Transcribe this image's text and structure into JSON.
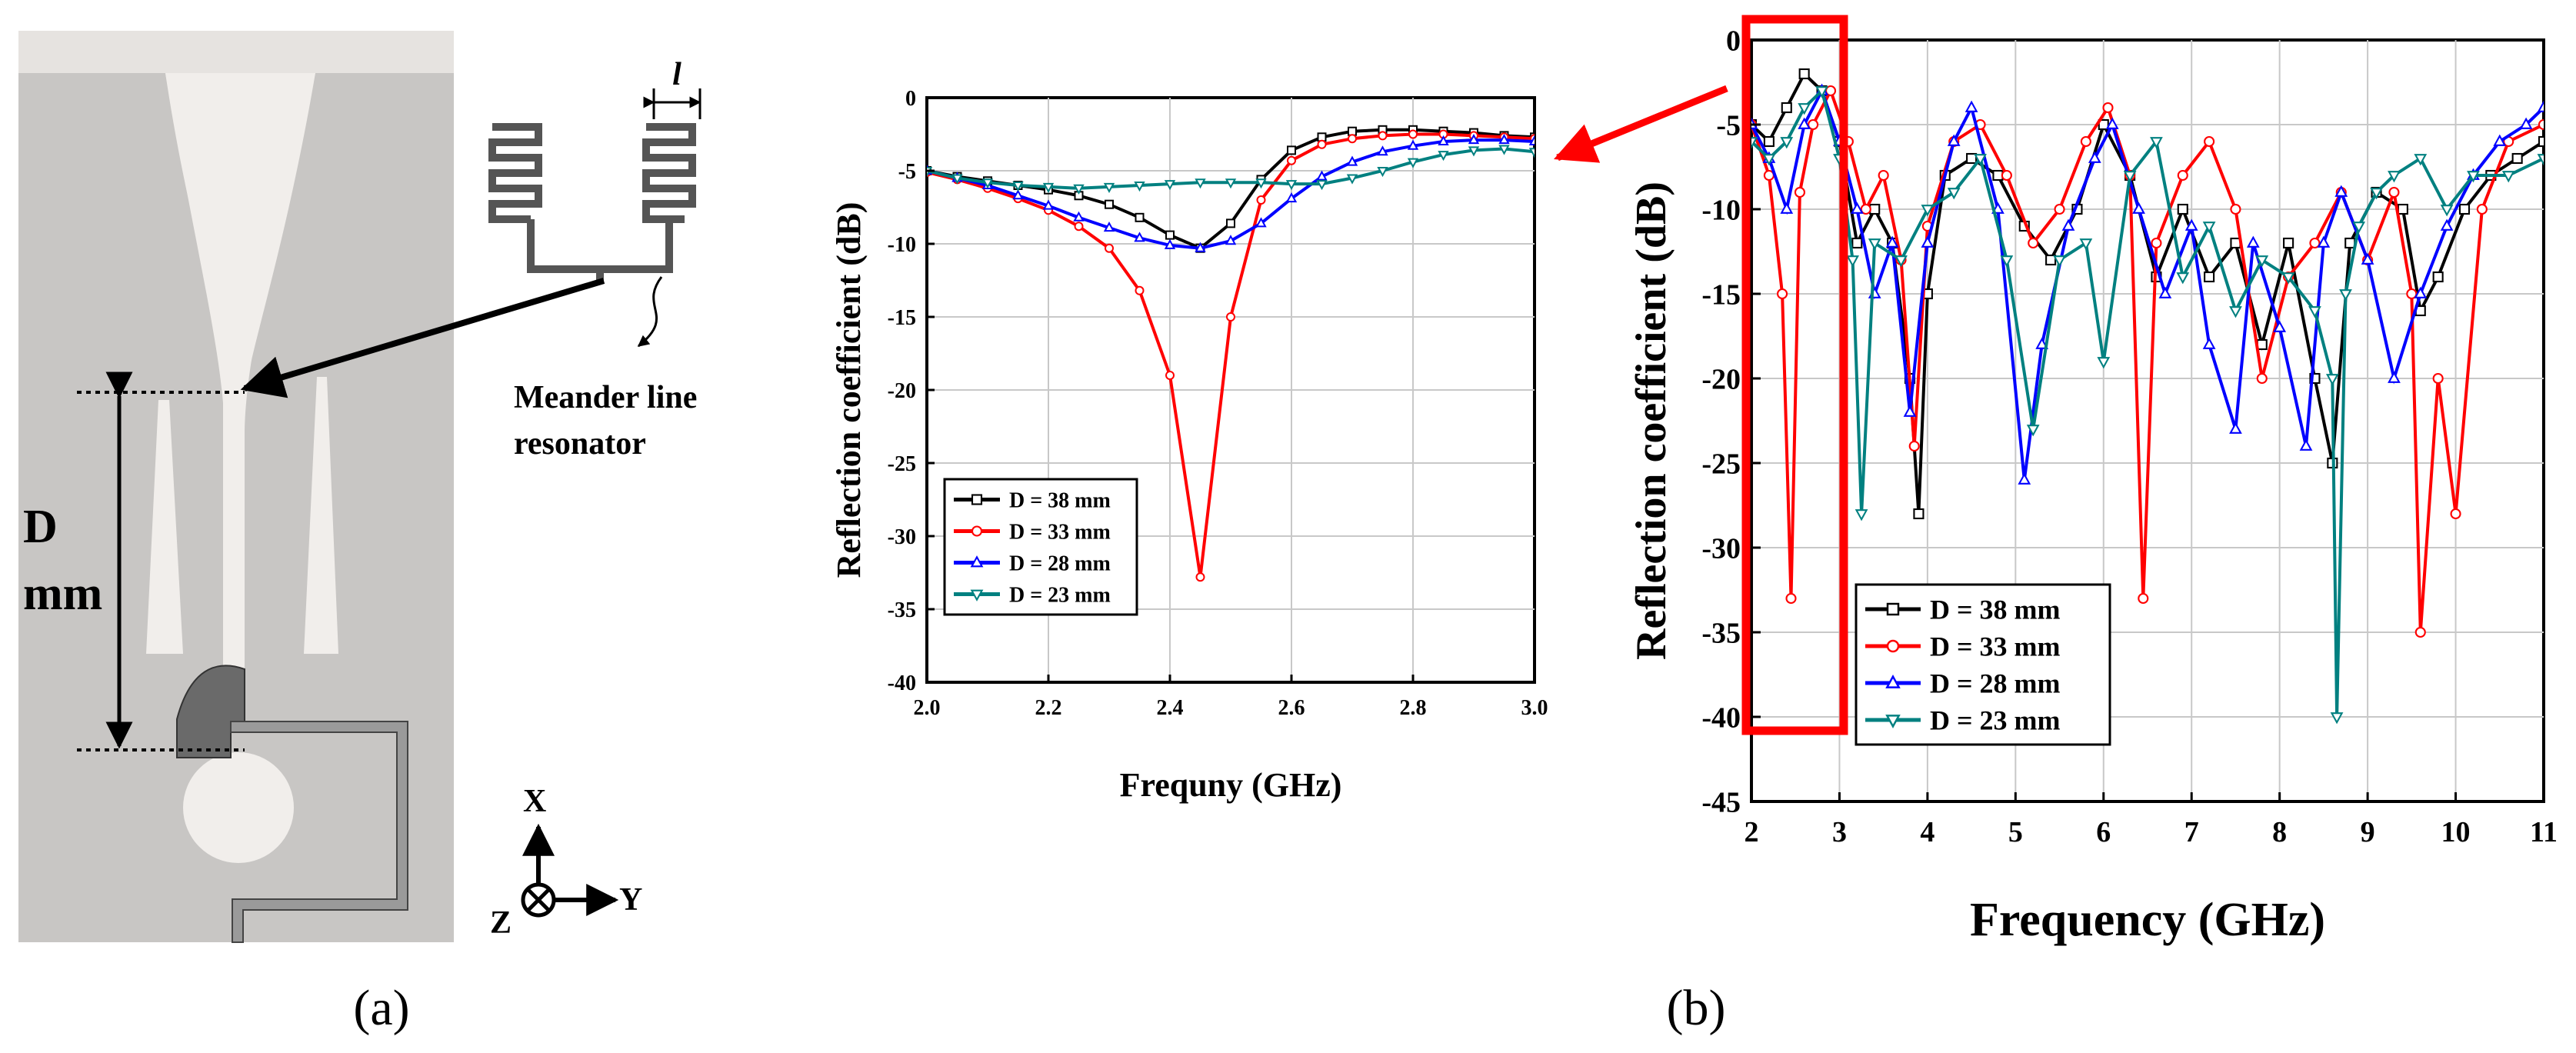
{
  "panel_a": {
    "label": "(a)",
    "dimension_letter": "l",
    "resonator_caption_line1": "Meander line",
    "resonator_caption_line2": "resonator",
    "distance_label_line1": "D",
    "distance_label_line2": "mm",
    "axis_x": "X",
    "axis_y": "Y",
    "axis_z": "Z"
  },
  "panel_b": {
    "label": "(b)"
  },
  "colors": {
    "d38": "#000000",
    "d33": "#ff0000",
    "d28": "#0000ff",
    "d23": "#008080",
    "highlight": "#ff0000",
    "substrate": "#c8c6c4",
    "slot": "#f1eeeb",
    "feed": "#6e6e6e"
  },
  "chart_data": [
    {
      "type": "line",
      "title": "",
      "xlabel": "Frequny (GHz)",
      "ylabel": "Reflection coefficient (dB)",
      "xlim": [
        2.0,
        3.0
      ],
      "ylim": [
        -40,
        0
      ],
      "xticks": [
        "2.0",
        "2.2",
        "2.4",
        "2.6",
        "2.8",
        "3.0"
      ],
      "yticks": [
        "0",
        "-5",
        "-10",
        "-15",
        "-20",
        "-25",
        "-30",
        "-35",
        "-40"
      ],
      "grid": true,
      "legend_position": "lower-left",
      "x": [
        2.0,
        2.05,
        2.1,
        2.15,
        2.2,
        2.25,
        2.3,
        2.35,
        2.4,
        2.45,
        2.5,
        2.55,
        2.6,
        2.65,
        2.7,
        2.75,
        2.8,
        2.85,
        2.9,
        2.95,
        3.0
      ],
      "series": [
        {
          "name": "D = 38 mm",
          "color_key": "d38",
          "marker": "square",
          "values": [
            -5.0,
            -5.4,
            -5.7,
            -6.0,
            -6.3,
            -6.7,
            -7.3,
            -8.2,
            -9.4,
            -10.3,
            -8.6,
            -5.6,
            -3.6,
            -2.7,
            -2.3,
            -2.2,
            -2.2,
            -2.3,
            -2.4,
            -2.6,
            -2.7
          ]
        },
        {
          "name": "D = 33 mm",
          "color_key": "d33",
          "marker": "circle",
          "values": [
            -5.1,
            -5.6,
            -6.2,
            -6.9,
            -7.7,
            -8.8,
            -10.3,
            -13.2,
            -19.0,
            -32.8,
            -15.0,
            -7.0,
            -4.3,
            -3.2,
            -2.8,
            -2.6,
            -2.5,
            -2.5,
            -2.6,
            -2.7,
            -2.8
          ]
        },
        {
          "name": "D = 28 mm",
          "color_key": "d28",
          "marker": "triangle-up",
          "values": [
            -5.0,
            -5.5,
            -6.0,
            -6.7,
            -7.4,
            -8.2,
            -8.9,
            -9.6,
            -10.1,
            -10.3,
            -9.8,
            -8.6,
            -6.9,
            -5.4,
            -4.4,
            -3.7,
            -3.3,
            -3.0,
            -2.9,
            -2.9,
            -3.0
          ]
        },
        {
          "name": "D = 23 mm",
          "color_key": "d23",
          "marker": "triangle-down",
          "values": [
            -5.0,
            -5.5,
            -5.8,
            -6.0,
            -6.1,
            -6.2,
            -6.1,
            -6.0,
            -5.9,
            -5.8,
            -5.8,
            -5.8,
            -5.9,
            -5.9,
            -5.5,
            -5.0,
            -4.4,
            -3.9,
            -3.6,
            -3.5,
            -3.7
          ]
        }
      ]
    },
    {
      "type": "line",
      "title": "",
      "xlabel": "Frequency (GHz)",
      "ylabel": "Reflection coefficient (dB)",
      "xlim": [
        2,
        11
      ],
      "ylim": [
        -45,
        0
      ],
      "xticks": [
        "2",
        "3",
        "4",
        "5",
        "6",
        "7",
        "8",
        "9",
        "10",
        "11"
      ],
      "yticks": [
        "0",
        "-5",
        "-10",
        "-15",
        "-20",
        "-25",
        "-30",
        "-35",
        "-40",
        "-45"
      ],
      "grid": true,
      "legend_position": "lower-left",
      "highlight_range": [
        2,
        3
      ],
      "series": [
        {
          "name": "D = 38 mm",
          "color_key": "d38",
          "marker": "square",
          "x": [
            2.0,
            2.2,
            2.4,
            2.6,
            2.8,
            3.0,
            3.2,
            3.4,
            3.6,
            3.8,
            3.9,
            4.0,
            4.2,
            4.5,
            4.8,
            5.1,
            5.4,
            5.7,
            6.0,
            6.3,
            6.6,
            6.9,
            7.2,
            7.5,
            7.8,
            8.1,
            8.4,
            8.6,
            8.8,
            9.1,
            9.4,
            9.6,
            9.8,
            10.1,
            10.4,
            10.7,
            11.0
          ],
          "values": [
            -5,
            -6,
            -4,
            -2,
            -3,
            -6,
            -12,
            -10,
            -12,
            -20,
            -28,
            -15,
            -8,
            -7,
            -8,
            -11,
            -13,
            -10,
            -5,
            -8,
            -14,
            -10,
            -14,
            -12,
            -18,
            -12,
            -20,
            -25,
            -12,
            -9,
            -10,
            -16,
            -14,
            -10,
            -8,
            -7,
            -6
          ]
        },
        {
          "name": "D = 33 mm",
          "color_key": "d33",
          "marker": "circle",
          "x": [
            2.0,
            2.2,
            2.35,
            2.45,
            2.55,
            2.7,
            2.9,
            3.1,
            3.3,
            3.5,
            3.7,
            3.85,
            4.0,
            4.3,
            4.6,
            4.9,
            5.2,
            5.5,
            5.8,
            6.05,
            6.3,
            6.45,
            6.6,
            6.9,
            7.2,
            7.5,
            7.8,
            8.1,
            8.4,
            8.7,
            9.0,
            9.3,
            9.5,
            9.6,
            9.8,
            10.0,
            10.3,
            10.6,
            11.0
          ],
          "values": [
            -5,
            -8,
            -15,
            -33,
            -9,
            -5,
            -3,
            -6,
            -10,
            -8,
            -13,
            -24,
            -11,
            -6,
            -5,
            -8,
            -12,
            -10,
            -6,
            -4,
            -8,
            -33,
            -12,
            -8,
            -6,
            -10,
            -20,
            -14,
            -12,
            -9,
            -13,
            -9,
            -15,
            -35,
            -20,
            -28,
            -10,
            -6,
            -5
          ]
        },
        {
          "name": "D = 28 mm",
          "color_key": "d28",
          "marker": "triangle-up",
          "x": [
            2.0,
            2.2,
            2.4,
            2.6,
            2.8,
            3.0,
            3.2,
            3.4,
            3.6,
            3.8,
            4.0,
            4.3,
            4.5,
            4.8,
            5.1,
            5.3,
            5.6,
            5.9,
            6.1,
            6.4,
            6.7,
            7.0,
            7.2,
            7.5,
            7.7,
            8.0,
            8.3,
            8.5,
            8.7,
            9.0,
            9.3,
            9.6,
            9.9,
            10.2,
            10.5,
            10.8,
            11.0
          ],
          "values": [
            -5,
            -7,
            -10,
            -5,
            -3,
            -6,
            -10,
            -15,
            -12,
            -22,
            -12,
            -6,
            -4,
            -10,
            -26,
            -18,
            -11,
            -7,
            -5,
            -10,
            -15,
            -11,
            -18,
            -23,
            -12,
            -17,
            -24,
            -12,
            -9,
            -13,
            -20,
            -15,
            -11,
            -8,
            -6,
            -5,
            -4
          ]
        },
        {
          "name": "D = 23 mm",
          "color_key": "d23",
          "marker": "triangle-down",
          "x": [
            2.0,
            2.2,
            2.4,
            2.6,
            2.8,
            3.0,
            3.15,
            3.25,
            3.4,
            3.7,
            4.0,
            4.3,
            4.6,
            4.9,
            5.2,
            5.5,
            5.8,
            6.0,
            6.3,
            6.6,
            6.9,
            7.2,
            7.5,
            7.8,
            8.1,
            8.4,
            8.6,
            8.65,
            8.75,
            8.9,
            9.1,
            9.3,
            9.6,
            9.9,
            10.2,
            10.6,
            11.0
          ],
          "values": [
            -6,
            -7,
            -6,
            -4,
            -3,
            -7,
            -13,
            -28,
            -12,
            -13,
            -10,
            -9,
            -7,
            -13,
            -23,
            -13,
            -12,
            -19,
            -8,
            -6,
            -14,
            -11,
            -16,
            -13,
            -14,
            -16,
            -20,
            -40,
            -15,
            -11,
            -9,
            -8,
            -7,
            -10,
            -8,
            -8,
            -7
          ]
        }
      ]
    }
  ]
}
